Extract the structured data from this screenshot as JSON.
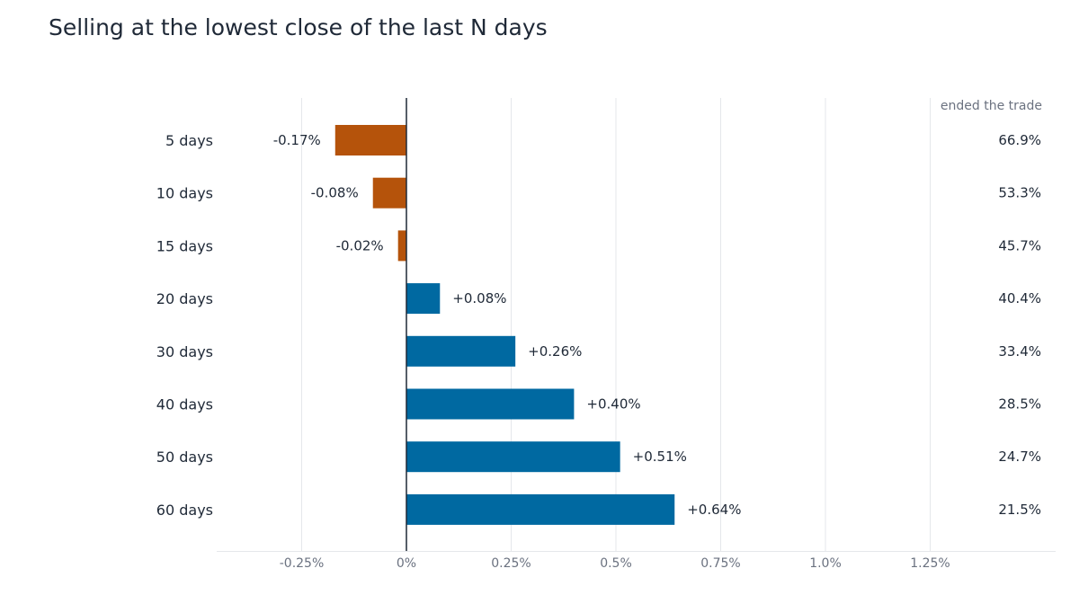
{
  "chart_data": {
    "type": "bar",
    "orientation": "horizontal",
    "title": "Selling at the lowest close of the last N days",
    "categories": [
      "5 days",
      "10 days",
      "15 days",
      "20 days",
      "30 days",
      "40 days",
      "50 days",
      "60 days"
    ],
    "values": [
      -0.17,
      -0.08,
      -0.02,
      0.08,
      0.26,
      0.4,
      0.51,
      0.64
    ],
    "value_labels": [
      "-0.17%",
      "-0.08%",
      "-0.02%",
      "+0.08%",
      "+0.26%",
      "+0.40%",
      "+0.51%",
      "+0.64%"
    ],
    "xlim": [
      -0.45,
      1.55
    ],
    "x_ticks": [
      -0.25,
      0,
      0.25,
      0.5,
      0.75,
      1.0,
      1.25
    ],
    "x_tick_labels": [
      "-0.25%",
      "0%",
      "0.25%",
      "0.5%",
      "0.75%",
      "1.0%",
      "1.25%"
    ],
    "grid": "vertical",
    "colors": {
      "negative": "#b5530b",
      "positive": "#0069a1",
      "grid": "#e5e7eb",
      "zero_line": "#1f2937"
    },
    "side_column": {
      "header": "ended the trade",
      "values": [
        "66.9%",
        "53.3%",
        "45.7%",
        "40.4%",
        "33.4%",
        "28.5%",
        "24.7%",
        "21.5%"
      ]
    }
  }
}
